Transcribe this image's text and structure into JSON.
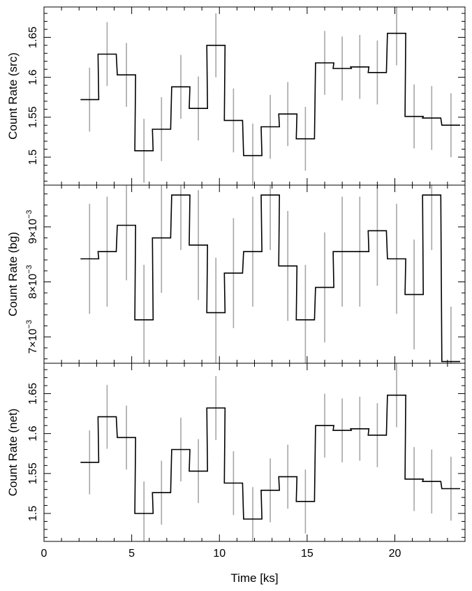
{
  "chart_data": {
    "type": "line",
    "x_axis": {
      "label": "Time [ks]",
      "range": [
        0,
        24
      ],
      "ticks": [
        0,
        5,
        10,
        15,
        20
      ]
    },
    "bin_width_ks": 1.04,
    "panels": [
      {
        "id": "src",
        "ylabel": "Count Rate (src)",
        "ylim": [
          1.465,
          1.688
        ],
        "yticks": [
          1.5,
          1.55,
          1.6,
          1.65
        ],
        "yticklabels": [
          "1.5",
          "1.55",
          "1.6",
          "1.65"
        ],
        "series": [
          {
            "style": "step-with-errorbars",
            "x": [
              2.6,
              3.6,
              4.7,
              5.7,
              6.7,
              7.8,
              8.8,
              9.8,
              10.8,
              11.9,
              12.9,
              13.9,
              14.9,
              16.0,
              17.0,
              18.0,
              19.0,
              20.1,
              21.1,
              22.1,
              23.2
            ],
            "y": [
              1.572,
              1.629,
              1.603,
              1.508,
              1.535,
              1.588,
              1.561,
              1.64,
              1.546,
              1.502,
              1.538,
              1.554,
              1.523,
              1.618,
              1.611,
              1.613,
              1.606,
              1.655,
              1.551,
              1.549,
              1.54
            ],
            "yerr": [
              0.04,
              0.04,
              0.04,
              0.04,
              0.04,
              0.04,
              0.04,
              0.04,
              0.04,
              0.04,
              0.04,
              0.04,
              0.04,
              0.04,
              0.04,
              0.04,
              0.04,
              0.04,
              0.04,
              0.04,
              0.04
            ]
          }
        ]
      },
      {
        "id": "bg",
        "ylabel": "Count Rate (bg)",
        "ylim": [
          0.00652,
          0.00976
        ],
        "yticks": [
          0.007,
          0.008,
          0.009
        ],
        "yticklabels": [
          {
            "mantissa": "7",
            "exp": "−3"
          },
          {
            "mantissa": "8",
            "exp": "−3"
          },
          {
            "mantissa": "9",
            "exp": "−3"
          }
        ],
        "series": [
          {
            "style": "step-with-errorbars",
            "x": [
              2.6,
              3.6,
              4.7,
              5.7,
              6.7,
              7.8,
              8.8,
              9.8,
              10.8,
              11.9,
              12.9,
              13.9,
              14.9,
              16.0,
              17.0,
              18.0,
              19.0,
              20.1,
              21.1,
              22.1,
              23.2
            ],
            "y": [
              0.00842,
              0.00855,
              0.00903,
              0.00731,
              0.0088,
              0.00958,
              0.00867,
              0.00744,
              0.00816,
              0.00855,
              0.00958,
              0.00829,
              0.00731,
              0.0079,
              0.00855,
              0.00855,
              0.00893,
              0.00842,
              0.00777,
              0.00958,
              0.00655
            ],
            "yerr": [
              0.001,
              0.001,
              0.001,
              0.001,
              0.001,
              0.001,
              0.001,
              0.001,
              0.001,
              0.001,
              0.001,
              0.001,
              0.001,
              0.001,
              0.001,
              0.001,
              0.001,
              0.001,
              0.001,
              0.001,
              0.001
            ]
          }
        ]
      },
      {
        "id": "net",
        "ylabel": "Count Rate (net)",
        "ylim": [
          1.465,
          1.688
        ],
        "yticks": [
          1.5,
          1.55,
          1.6,
          1.65
        ],
        "yticklabels": [
          "1.5",
          "1.55",
          "1.6",
          "1.65"
        ],
        "series": [
          {
            "style": "step-with-errorbars",
            "x": [
              2.6,
              3.6,
              4.7,
              5.7,
              6.7,
              7.8,
              8.8,
              9.8,
              10.8,
              11.9,
              12.9,
              13.9,
              14.9,
              16.0,
              17.0,
              18.0,
              19.0,
              20.1,
              21.1,
              22.1,
              23.2
            ],
            "y": [
              1.564,
              1.621,
              1.595,
              1.5,
              1.526,
              1.58,
              1.553,
              1.632,
              1.538,
              1.493,
              1.529,
              1.546,
              1.515,
              1.61,
              1.604,
              1.606,
              1.598,
              1.648,
              1.543,
              1.54,
              1.531
            ],
            "yerr": [
              0.04,
              0.04,
              0.04,
              0.04,
              0.04,
              0.04,
              0.04,
              0.04,
              0.04,
              0.04,
              0.04,
              0.04,
              0.04,
              0.04,
              0.04,
              0.04,
              0.04,
              0.04,
              0.04,
              0.04,
              0.04
            ]
          }
        ]
      }
    ],
    "colors": {
      "line": "#000000",
      "errorbar": "#a6a6a6",
      "frame": "#000000"
    },
    "grid": false,
    "legend": "none"
  }
}
